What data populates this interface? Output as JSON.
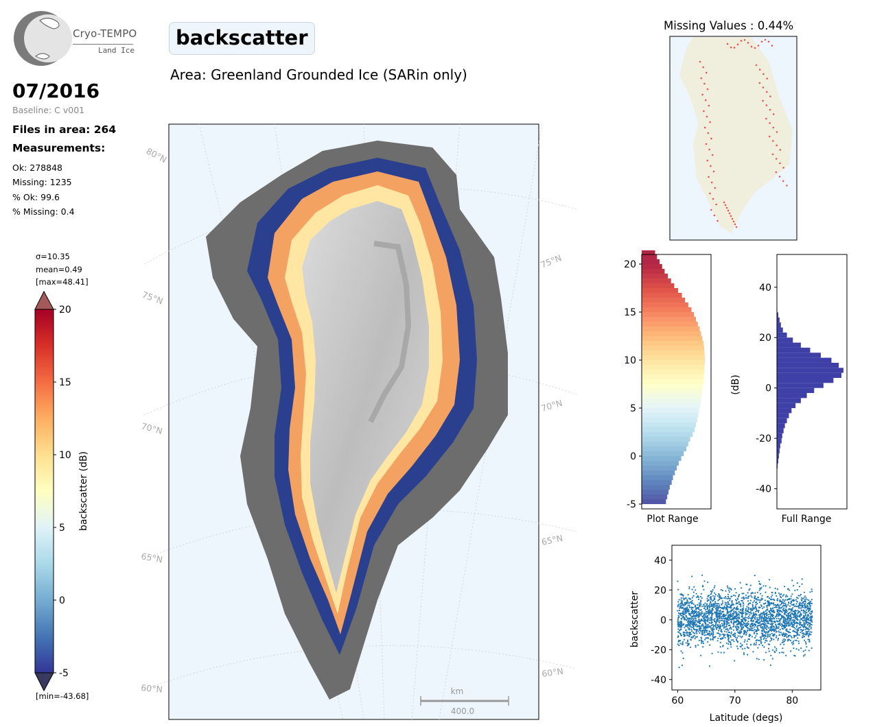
{
  "logo": {
    "name": "Cryo-TEMPO",
    "subtitle": "Land Ice"
  },
  "header": {
    "parameter": "backscatter",
    "area": "Area: Greenland Grounded Ice (SARin only)"
  },
  "summary": {
    "date": "07/2016",
    "baseline": "Baseline: C v001",
    "files": "Files in area: 264",
    "measurements_label": "Measurements:",
    "ok": "Ok: 278848",
    "missing": "Missing: 1235",
    "pct_ok": "% Ok: 99.6",
    "pct_missing": "% Missing: 0.4"
  },
  "colors": {
    "ocean": "#eef6fd",
    "land": "#f0eedd",
    "hist_full": "#3f3fa8",
    "scatter": "#1f77b4",
    "missing_marker": "#e03030",
    "map_label": "#aaaaaa"
  },
  "map": {
    "lat_labels_left": [
      "80°N",
      "75°N",
      "70°N",
      "65°N",
      "60°N"
    ],
    "lat_labels_right": [
      "75°N",
      "70°N",
      "65°N",
      "60°N"
    ],
    "scalebar_unit": "km",
    "scalebar_value": "400.0"
  },
  "chart_data": [
    {
      "type": "heatmap",
      "id": "colorbar",
      "label": "backscatter (dB)",
      "vmin": -5,
      "vmax": 20,
      "ticks": [
        -5,
        0,
        5,
        10,
        15,
        20
      ],
      "colormap": "RdYlBu_r",
      "extend": "both",
      "stats_sigma": "σ=10.35",
      "stats_mean": "mean=0.49",
      "stats_max": "[max=48.41]",
      "stats_min": "[min=-43.68]"
    },
    {
      "type": "scatter",
      "id": "missing-map",
      "title": "Missing Values : 0.44%"
    },
    {
      "type": "bar",
      "id": "hist-plot-range",
      "orientation": "horizontal",
      "xlabel": "Plot Range",
      "ylim": [
        -5.5,
        21
      ],
      "yticks": [
        -5,
        0,
        5,
        10,
        15,
        20
      ],
      "bin_width": 0.5,
      "bin_start": -5,
      "counts": [
        0.38,
        0.4,
        0.42,
        0.44,
        0.47,
        0.49,
        0.52,
        0.55,
        0.58,
        0.62,
        0.66,
        0.7,
        0.73,
        0.76,
        0.8,
        0.83,
        0.85,
        0.87,
        0.89,
        0.9,
        0.92,
        0.93,
        0.94,
        0.95,
        0.96,
        0.97,
        0.975,
        0.98,
        0.985,
        0.99,
        0.99,
        0.985,
        0.98,
        0.97,
        0.95,
        0.93,
        0.91,
        0.88,
        0.85,
        0.82,
        0.78,
        0.73,
        0.68,
        0.63,
        0.57,
        0.51,
        0.46,
        0.41,
        0.36,
        0.32,
        0.28,
        0.24,
        0.21,
        0.18,
        0.15,
        0.13,
        0.11,
        0.09,
        0.07,
        0.06,
        0.05,
        0.04,
        0.03,
        0.02,
        0.015,
        0.01,
        0.007,
        0.005,
        0.003,
        0.002
      ]
    },
    {
      "type": "bar",
      "id": "hist-full-range",
      "orientation": "horizontal",
      "xlabel": "Full Range",
      "ylabel": "(dB)",
      "ylim": [
        -48,
        53
      ],
      "yticks": [
        -40,
        -20,
        0,
        20,
        40
      ],
      "bin_width": 2,
      "bin_start": -32,
      "counts": [
        0.01,
        0.02,
        0.03,
        0.04,
        0.05,
        0.07,
        0.08,
        0.1,
        0.12,
        0.15,
        0.18,
        0.22,
        0.28,
        0.36,
        0.45,
        0.56,
        0.7,
        0.85,
        0.97,
        1.0,
        0.93,
        0.82,
        0.66,
        0.5,
        0.36,
        0.24,
        0.15,
        0.09,
        0.06,
        0.04,
        0.02
      ]
    },
    {
      "type": "scatter",
      "id": "lat-scatter",
      "xlabel": "Latitude (degs)",
      "ylabel": "backscatter",
      "xlim": [
        59,
        85
      ],
      "ylim": [
        -47,
        50
      ],
      "xticks": [
        60,
        70,
        80
      ],
      "yticks": [
        -40,
        -20,
        0,
        20,
        40
      ],
      "x_range": [
        60,
        83.5
      ],
      "y_center": 0.5,
      "y_sigma": 10.35
    }
  ]
}
